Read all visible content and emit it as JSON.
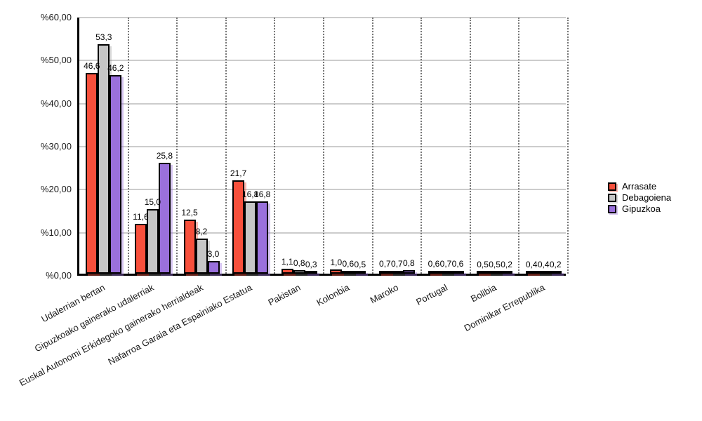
{
  "chart_data": {
    "type": "bar",
    "title": "",
    "xlabel": "",
    "ylabel": "",
    "categories": [
      "Udalerrian bertan",
      "Gipuzkoako gainerako udalerriak",
      "Euskal Autonomi Erkidegoko gainerako herrialdeak",
      "Nafarroa Garaia eta Espainiako Estatua",
      "Pakistan",
      "Kolonbia",
      "Maroko",
      "Portugal",
      "Bolibia",
      "Dominikar Errepublika"
    ],
    "series": [
      {
        "name": "Arrasate",
        "color": "#F8503C",
        "shadow": "rgba(248,80,60,0.40)",
        "values": [
          46.6,
          11.6,
          12.5,
          21.7,
          1.1,
          1.0,
          0.7,
          0.6,
          0.5,
          0.4
        ]
      },
      {
        "name": "Debagoiena",
        "color": "#C6C6C6",
        "shadow": "rgba(130,130,130,0.30)",
        "values": [
          53.3,
          15.0,
          8.2,
          16.8,
          0.8,
          0.6,
          0.7,
          0.7,
          0.5,
          0.4
        ]
      },
      {
        "name": "Gipuzkoa",
        "color": "#9A70DC",
        "shadow": "rgba(154,112,220,0.40)",
        "values": [
          46.2,
          25.8,
          3.0,
          16.8,
          0.3,
          0.5,
          0.8,
          0.6,
          0.2,
          0.2
        ]
      }
    ],
    "ylim": [
      0,
      60
    ],
    "y_ticks": [
      {
        "value": 60,
        "label": "%60,00"
      },
      {
        "value": 50,
        "label": "%50,00"
      },
      {
        "value": 40,
        "label": "%40,00"
      },
      {
        "value": 30,
        "label": "%30,00"
      },
      {
        "value": 20,
        "label": "%20,00"
      },
      {
        "value": 10,
        "label": "%10,00"
      },
      {
        "value": 0,
        "label": "%0,00"
      }
    ],
    "value_label_decimal_separator": ",",
    "grid": {
      "horizontal_color": "#CCCCCC",
      "vertical_dotted_color": "#777777"
    },
    "legend": {
      "position": "right",
      "entries": [
        "Arrasate",
        "Debagoiena",
        "Gipuzkoa"
      ]
    }
  },
  "colors": {
    "background": "#FFFFFF",
    "axis": "#000000",
    "bar_border": "#000000",
    "text": "#1A1A1A"
  }
}
